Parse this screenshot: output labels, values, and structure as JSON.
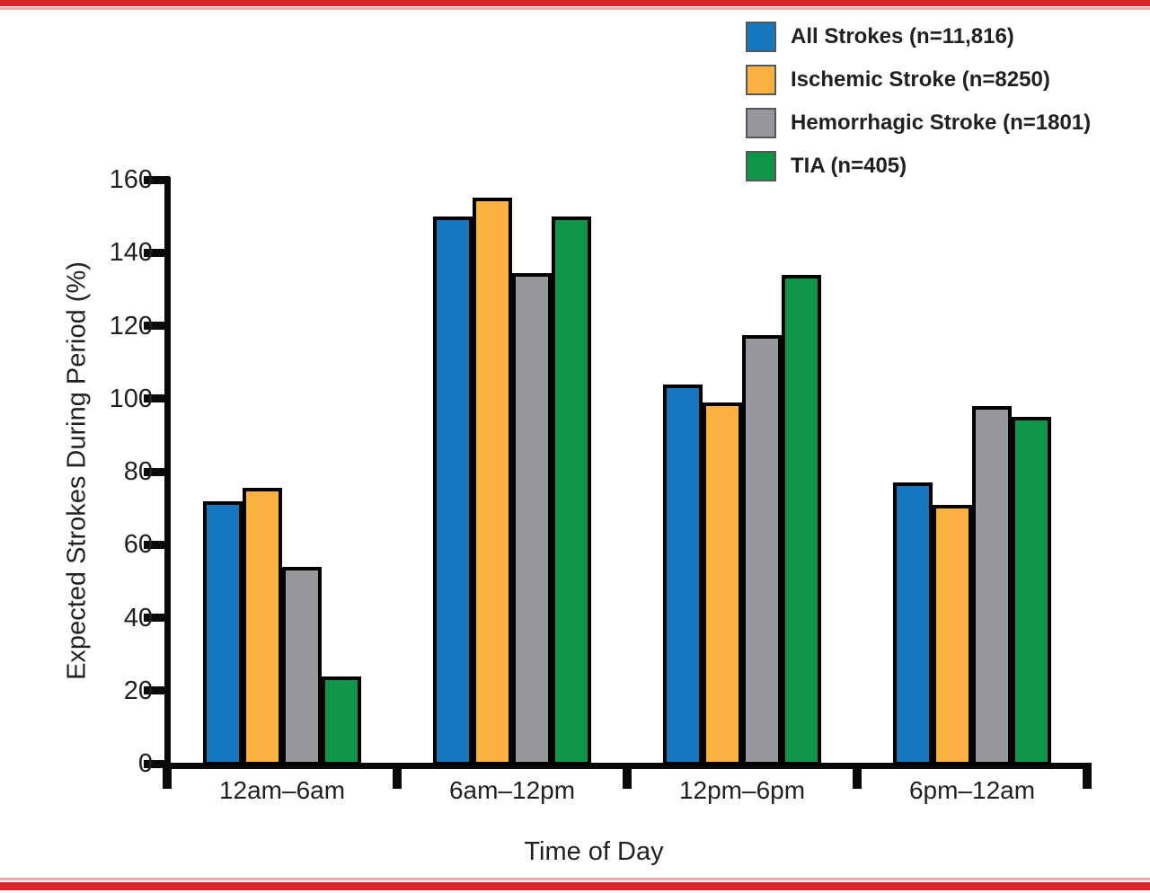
{
  "figure": {
    "background": "#ffffff",
    "border_top_color": "#d8232a",
    "border_accent_color": "#f3abae",
    "text_color": "#231f20"
  },
  "chart_data": {
    "type": "bar",
    "title": "",
    "xlabel": "Time of Day",
    "ylabel": "Expected Strokes During Period (%)",
    "categories": [
      "12am–6am",
      "6am–12pm",
      "12pm–6pm",
      "6pm–12am"
    ],
    "series": [
      {
        "key": "all-strokes",
        "name": "All Strokes (n=11,816)",
        "color": "#1577be",
        "values": [
          72,
          150,
          104,
          77
        ]
      },
      {
        "key": "ischemic-stroke",
        "name": "Ischemic Stroke (n=8250)",
        "color": "#fbb042",
        "values": [
          75.5,
          155,
          99,
          71
        ]
      },
      {
        "key": "hemorrhagic-stroke",
        "name": "Hemorrhagic Stroke (n=1801)",
        "color": "#95979a",
        "values": [
          54,
          134.5,
          117.5,
          98
        ]
      },
      {
        "key": "tia",
        "name": "TIA (n=405)",
        "color": "#0e9548",
        "values": [
          24,
          150,
          134,
          95
        ]
      }
    ],
    "ylim": [
      0,
      160
    ],
    "yticks": [
      0,
      20,
      40,
      60,
      80,
      100,
      120,
      140,
      160
    ],
    "grid": false,
    "legend_position": "top-right",
    "bar_outline_color": "#000000"
  }
}
